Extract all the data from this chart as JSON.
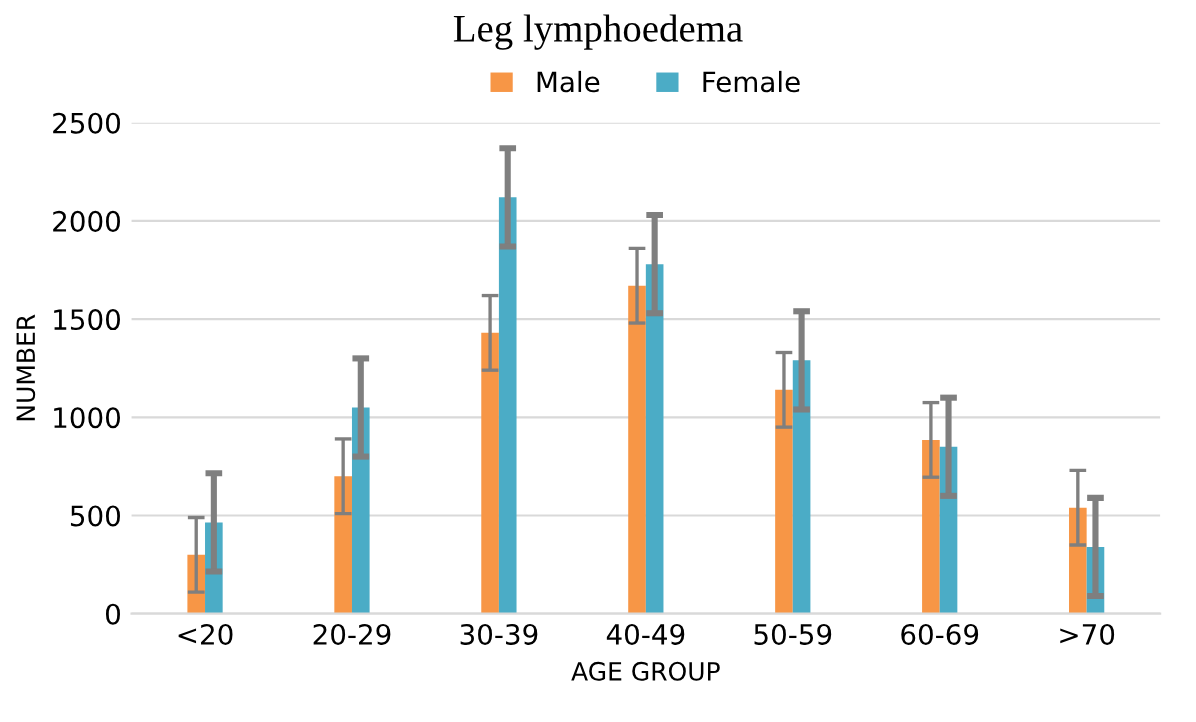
{
  "chart_data": {
    "type": "bar",
    "title": "Leg lymphoedema",
    "xlabel": "AGE GROUP",
    "ylabel": "NUMBER",
    "categories": [
      "<20",
      "20-29",
      "30-39",
      "40-49",
      "50-59",
      "60-69",
      ">70"
    ],
    "series": [
      {
        "name": "Male",
        "color": "#f79646",
        "values": [
          300,
          700,
          1430,
          1670,
          1140,
          885,
          540
        ],
        "errors": [
          190,
          190,
          190,
          190,
          190,
          190,
          190
        ]
      },
      {
        "name": "Female",
        "color": "#4bacc6",
        "values": [
          465,
          1050,
          2120,
          1780,
          1290,
          850,
          340
        ],
        "errors": [
          250,
          250,
          250,
          250,
          250,
          250,
          250
        ]
      }
    ],
    "ylim": [
      0,
      2500
    ],
    "yticks": [
      0,
      500,
      1000,
      1500,
      2000,
      2500
    ],
    "grid": "y",
    "legend": "top"
  }
}
